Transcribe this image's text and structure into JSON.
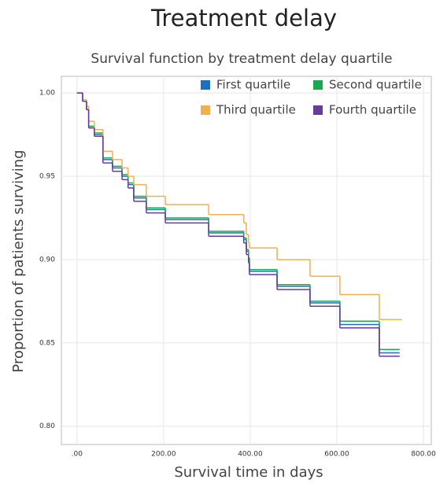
{
  "chart_data": {
    "type": "step",
    "title": "Treatment delay",
    "subtitle": "Survival function by treatment delay quartile",
    "x_label": "Survival time in days",
    "y_label": "Proportion of patients surviving",
    "xlim": [
      -36,
      818
    ],
    "ylim": [
      0.789,
      1.01
    ],
    "xticks": [
      {
        "value": 0,
        "label": ".00"
      },
      {
        "value": 200,
        "label": "200.00"
      },
      {
        "value": 400,
        "label": "400.00"
      },
      {
        "value": 600,
        "label": "600.00"
      },
      {
        "value": 800,
        "label": "800.00"
      }
    ],
    "yticks": [
      {
        "value": 0.8,
        "label": "0.80"
      },
      {
        "value": 0.85,
        "label": "0.85"
      },
      {
        "value": 0.9,
        "label": "0.90"
      },
      {
        "value": 0.95,
        "label": "0.95"
      },
      {
        "value": 1,
        "label": "1.00"
      }
    ],
    "grid": true,
    "legend_position": "top-right",
    "series": [
      {
        "name": "First quartile",
        "color": "#1f6fbf",
        "x": [
          0,
          13,
          22,
          27,
          40,
          60,
          82,
          104,
          118,
          131,
          160,
          204,
          304,
          385,
          391,
          396,
          398,
          462,
          538,
          607,
          698,
          745
        ],
        "values": [
          1.0,
          0.995,
          0.99,
          0.98,
          0.975,
          0.96,
          0.955,
          0.95,
          0.945,
          0.937,
          0.93,
          0.924,
          0.916,
          0.912,
          0.905,
          0.9,
          0.893,
          0.884,
          0.874,
          0.861,
          0.844,
          0.844
        ]
      },
      {
        "name": "Second quartile",
        "color": "#1aa84f",
        "x": [
          0,
          13,
          22,
          27,
          40,
          60,
          82,
          104,
          118,
          131,
          160,
          204,
          304,
          385,
          391,
          396,
          398,
          462,
          538,
          607,
          698,
          745
        ],
        "values": [
          1.0,
          0.995,
          0.99,
          0.98,
          0.976,
          0.961,
          0.956,
          0.951,
          0.946,
          0.938,
          0.931,
          0.925,
          0.917,
          0.913,
          0.906,
          0.901,
          0.894,
          0.885,
          0.875,
          0.863,
          0.846,
          0.846
        ]
      },
      {
        "name": "Third quartile",
        "color": "#f0b050",
        "x": [
          0,
          13,
          22,
          27,
          40,
          60,
          82,
          104,
          118,
          131,
          160,
          204,
          304,
          385,
          391,
          396,
          398,
          462,
          538,
          607,
          698,
          750
        ],
        "values": [
          1.0,
          0.996,
          0.992,
          0.983,
          0.978,
          0.965,
          0.96,
          0.955,
          0.95,
          0.945,
          0.938,
          0.933,
          0.927,
          0.922,
          0.915,
          0.91,
          0.907,
          0.9,
          0.89,
          0.879,
          0.864,
          0.864
        ]
      },
      {
        "name": "Fourth quartile",
        "color": "#6a3a9a",
        "x": [
          0,
          13,
          22,
          27,
          40,
          60,
          82,
          104,
          118,
          131,
          160,
          204,
          304,
          385,
          391,
          396,
          398,
          462,
          538,
          607,
          698,
          745
        ],
        "values": [
          1.0,
          0.995,
          0.99,
          0.979,
          0.974,
          0.958,
          0.953,
          0.948,
          0.943,
          0.935,
          0.928,
          0.922,
          0.914,
          0.91,
          0.903,
          0.898,
          0.891,
          0.882,
          0.872,
          0.859,
          0.842,
          0.842
        ]
      }
    ]
  }
}
